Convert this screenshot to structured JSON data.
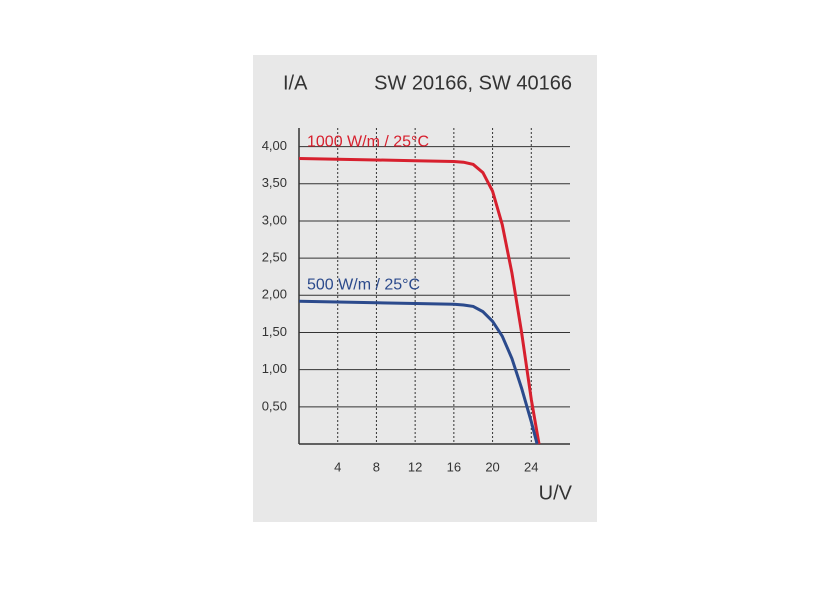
{
  "chart_data": {
    "type": "line",
    "title": "SW 20166, SW 40166",
    "y_label": "I/A",
    "x_label": "U/V",
    "xlim": [
      0,
      28
    ],
    "ylim": [
      0,
      4.25
    ],
    "xticks": [
      4,
      8,
      12,
      16,
      20,
      24
    ],
    "yticks": [
      {
        "value": 0.5,
        "label": "0,50"
      },
      {
        "value": 1.0,
        "label": "1,00"
      },
      {
        "value": 1.5,
        "label": "1,50"
      },
      {
        "value": 2.0,
        "label": "2,00"
      },
      {
        "value": 2.5,
        "label": "2,50"
      },
      {
        "value": 3.0,
        "label": "3,00"
      },
      {
        "value": 3.5,
        "label": "3,50"
      },
      {
        "value": 4.0,
        "label": "4,00"
      }
    ],
    "grid": true,
    "series": [
      {
        "name": "1000 W/m  / 25°C",
        "color": "#d7202e",
        "x": [
          0,
          4,
          8,
          12,
          16,
          17,
          18,
          19,
          20,
          21,
          22,
          23,
          24,
          24.8
        ],
        "values": [
          3.84,
          3.83,
          3.82,
          3.81,
          3.8,
          3.79,
          3.76,
          3.65,
          3.4,
          2.95,
          2.3,
          1.5,
          0.6,
          0
        ]
      },
      {
        "name": "500 W/m  / 25°C",
        "color": "#2b4a8c",
        "x": [
          0,
          4,
          8,
          12,
          16,
          17,
          18,
          19,
          20,
          21,
          22,
          23,
          24,
          24.6
        ],
        "values": [
          1.92,
          1.91,
          1.9,
          1.89,
          1.88,
          1.87,
          1.85,
          1.78,
          1.65,
          1.45,
          1.15,
          0.75,
          0.3,
          0
        ]
      }
    ]
  }
}
